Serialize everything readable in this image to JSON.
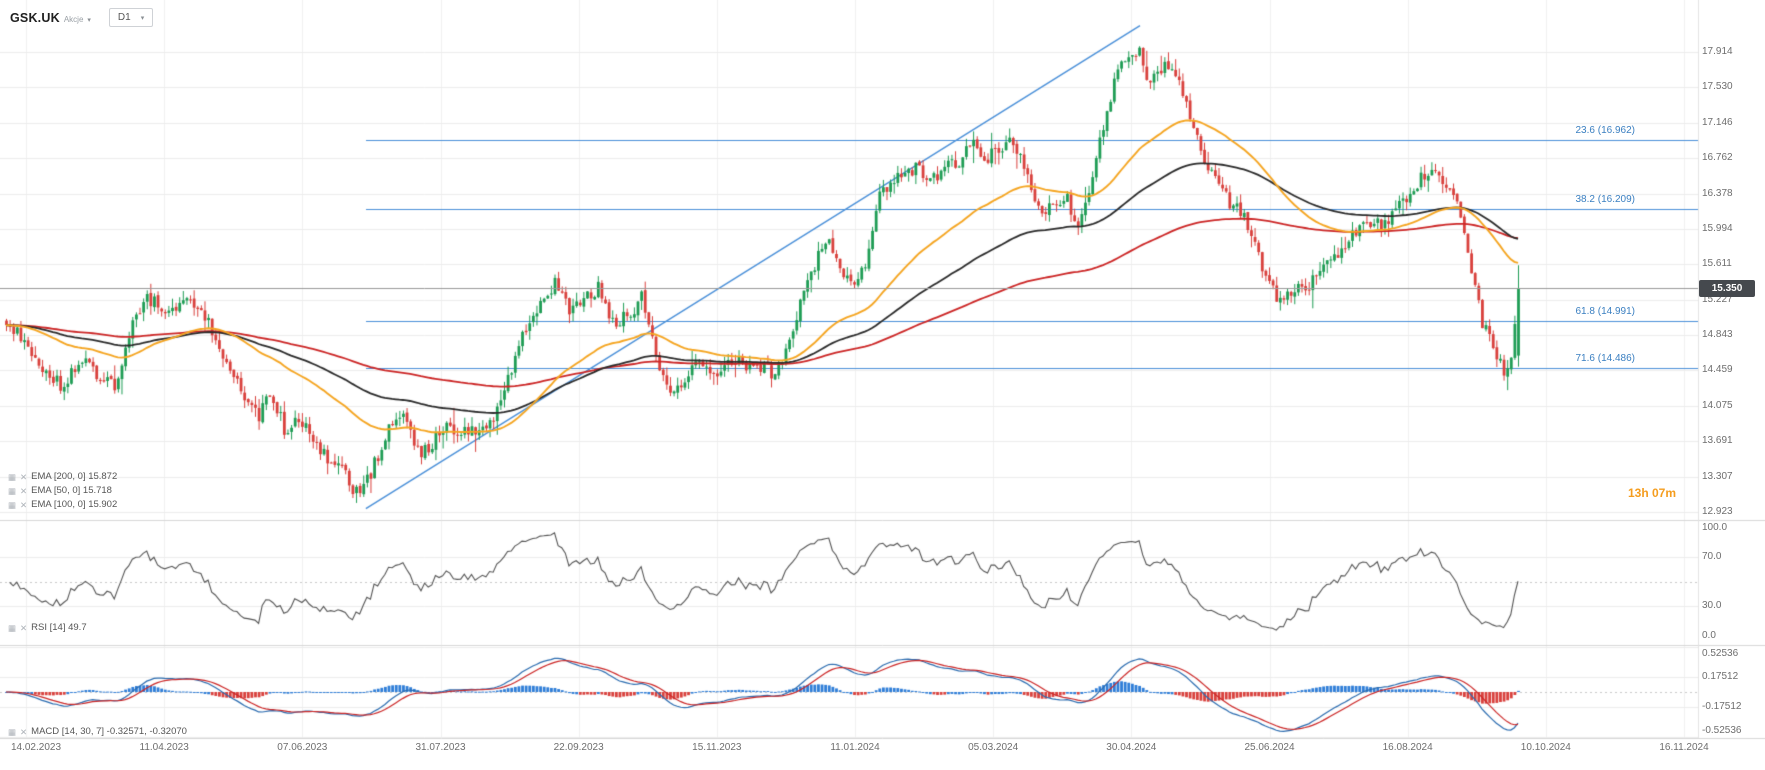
{
  "header": {
    "symbol": "GSK.UK",
    "market_label": "Akcje",
    "timeframe": "D1"
  },
  "icons": {
    "chevron_down": "▾",
    "indicator_chart": "▦",
    "indicator_remove": "✕"
  },
  "chart_data": {
    "type": "candlestick",
    "symbol": "GSK.UK",
    "timeframe": "D1",
    "current_price": "15.350",
    "candle_countdown": "13h 07m",
    "price_axis_ticks": [
      "17.914",
      "17.530",
      "17.146",
      "16.762",
      "16.378",
      "15.994",
      "15.611",
      "15.227",
      "14.843",
      "14.459",
      "14.075",
      "13.691",
      "13.307",
      "12.923"
    ],
    "x_axis_dates": [
      "14.02.2023",
      "11.04.2023",
      "07.06.2023",
      "31.07.2023",
      "22.09.2023",
      "15.11.2023",
      "11.01.2024",
      "05.03.2024",
      "30.04.2024",
      "25.06.2024",
      "16.08.2024",
      "10.10.2024",
      "16.11.2024"
    ],
    "fibonacci_levels": [
      {
        "label": "23.6 (16.962)",
        "price": 16.962
      },
      {
        "label": "38.2 (16.209)",
        "price": 16.209
      },
      {
        "label": "61.8 (14.991)",
        "price": 14.991
      },
      {
        "label": "71.6 (14.486)",
        "price": 14.486
      }
    ],
    "trendline": {
      "t1": 0.238,
      "p1": 12.96,
      "t2": 0.75,
      "p2": 18.2
    },
    "indicators": {
      "emas": [
        {
          "label": "EMA [200, 0] 15.872",
          "period": 200,
          "value": "15.872",
          "color": "#cc2626"
        },
        {
          "label": "EMA [50, 0] 15.718",
          "period": 50,
          "value": "15.718",
          "color": "#f5a623"
        },
        {
          "label": "EMA [100, 0] 15.902",
          "period": 100,
          "value": "15.902",
          "color": "#2b2b2b"
        }
      ],
      "rsi": {
        "label": "RSI [14]  49.7",
        "period": 14,
        "value": "49.7",
        "axis_ticks": [
          "100.0",
          "70.0",
          "30.0",
          "0.0"
        ]
      },
      "macd": {
        "label": "MACD [14, 30, 7] -0.32571,  -0.32070",
        "fast": 14,
        "slow": 30,
        "signal": 7,
        "macd_value": "-0.32571",
        "signal_value": "-0.32070",
        "axis_ticks": [
          "0.52536",
          "0.17512",
          "-0.17512",
          "-0.52536"
        ]
      }
    },
    "price_path": [
      [
        0.0,
        15.0
      ],
      [
        0.011,
        14.78
      ],
      [
        0.026,
        14.45
      ],
      [
        0.037,
        14.3
      ],
      [
        0.048,
        14.58
      ],
      [
        0.059,
        14.45
      ],
      [
        0.071,
        14.28
      ],
      [
        0.082,
        14.9
      ],
      [
        0.093,
        15.25
      ],
      [
        0.108,
        15.05
      ],
      [
        0.119,
        15.2
      ],
      [
        0.13,
        15.12
      ],
      [
        0.145,
        14.6
      ],
      [
        0.156,
        14.18
      ],
      [
        0.166,
        13.95
      ],
      [
        0.175,
        14.25
      ],
      [
        0.184,
        13.8
      ],
      [
        0.193,
        13.97
      ],
      [
        0.203,
        13.75
      ],
      [
        0.212,
        13.5
      ],
      [
        0.223,
        13.35
      ],
      [
        0.233,
        13.1
      ],
      [
        0.242,
        13.38
      ],
      [
        0.253,
        13.85
      ],
      [
        0.262,
        13.95
      ],
      [
        0.273,
        13.55
      ],
      [
        0.283,
        13.7
      ],
      [
        0.292,
        13.85
      ],
      [
        0.303,
        13.78
      ],
      [
        0.312,
        13.82
      ],
      [
        0.323,
        13.95
      ],
      [
        0.335,
        14.55
      ],
      [
        0.346,
        15.0
      ],
      [
        0.355,
        15.2
      ],
      [
        0.364,
        15.45
      ],
      [
        0.372,
        15.1
      ],
      [
        0.381,
        15.2
      ],
      [
        0.392,
        15.35
      ],
      [
        0.401,
        14.95
      ],
      [
        0.411,
        15.05
      ],
      [
        0.42,
        15.25
      ],
      [
        0.429,
        14.7
      ],
      [
        0.438,
        14.15
      ],
      [
        0.447,
        14.35
      ],
      [
        0.457,
        14.5
      ],
      [
        0.468,
        14.45
      ],
      [
        0.478,
        14.5
      ],
      [
        0.487,
        14.55
      ],
      [
        0.496,
        14.5
      ],
      [
        0.506,
        14.45
      ],
      [
        0.515,
        14.6
      ],
      [
        0.524,
        15.1
      ],
      [
        0.533,
        15.55
      ],
      [
        0.542,
        15.9
      ],
      [
        0.551,
        15.6
      ],
      [
        0.559,
        15.35
      ],
      [
        0.567,
        15.55
      ],
      [
        0.576,
        16.3
      ],
      [
        0.585,
        16.55
      ],
      [
        0.594,
        16.6
      ],
      [
        0.603,
        16.65
      ],
      [
        0.612,
        16.55
      ],
      [
        0.621,
        16.65
      ],
      [
        0.63,
        16.75
      ],
      [
        0.639,
        16.9
      ],
      [
        0.648,
        16.75
      ],
      [
        0.657,
        16.85
      ],
      [
        0.665,
        17.0
      ],
      [
        0.674,
        16.6
      ],
      [
        0.683,
        16.15
      ],
      [
        0.692,
        16.25
      ],
      [
        0.701,
        16.35
      ],
      [
        0.709,
        16.0
      ],
      [
        0.716,
        16.45
      ],
      [
        0.723,
        16.95
      ],
      [
        0.732,
        17.55
      ],
      [
        0.741,
        17.85
      ],
      [
        0.749,
        17.95
      ],
      [
        0.756,
        17.6
      ],
      [
        0.764,
        17.75
      ],
      [
        0.771,
        17.8
      ],
      [
        0.778,
        17.5
      ],
      [
        0.787,
        17.0
      ],
      [
        0.796,
        16.6
      ],
      [
        0.805,
        16.35
      ],
      [
        0.814,
        16.2
      ],
      [
        0.823,
        16.0
      ],
      [
        0.832,
        15.45
      ],
      [
        0.841,
        15.25
      ],
      [
        0.85,
        15.3
      ],
      [
        0.859,
        15.35
      ],
      [
        0.868,
        15.5
      ],
      [
        0.877,
        15.7
      ],
      [
        0.886,
        15.85
      ],
      [
        0.894,
        16.0
      ],
      [
        0.903,
        16.1
      ],
      [
        0.912,
        16.05
      ],
      [
        0.921,
        16.25
      ],
      [
        0.93,
        16.45
      ],
      [
        0.939,
        16.6
      ],
      [
        0.946,
        16.65
      ],
      [
        0.954,
        16.45
      ],
      [
        0.961,
        16.2
      ],
      [
        0.969,
        15.5
      ],
      [
        0.976,
        15.0
      ],
      [
        0.983,
        14.7
      ],
      [
        0.991,
        14.45
      ],
      [
        0.995,
        14.55
      ],
      [
        1.0,
        15.35
      ]
    ],
    "colors": {
      "bull": "#1f9d55",
      "bear": "#d9413d",
      "fib": "#4a90d9",
      "trend": "#4a90d9",
      "price_line": "#999999",
      "badge_bg": "#45494e",
      "rsi_line": "#555555",
      "macd_line": "#2b6cb0",
      "macd_signal": "#cc2626",
      "macd_hist_pos": "#2f7ed8",
      "macd_hist_neg": "#d9413d",
      "timer": "#f59d1e"
    }
  }
}
